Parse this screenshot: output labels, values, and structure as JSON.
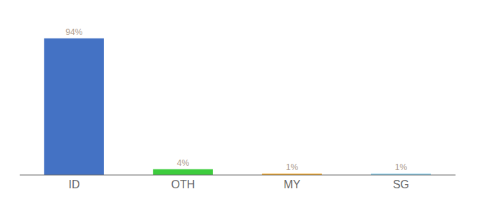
{
  "chart_data": {
    "type": "bar",
    "categories": [
      "ID",
      "OTH",
      "MY",
      "SG"
    ],
    "values": [
      94,
      4,
      1,
      1
    ],
    "value_labels": [
      "94%",
      "4%",
      "1%",
      "1%"
    ],
    "colors": [
      "#4472c4",
      "#3dcc3d",
      "#f5a623",
      "#87ceeb"
    ],
    "ylim": [
      0,
      105
    ],
    "data_labels": true,
    "tick_labels": "x",
    "grid": false
  }
}
